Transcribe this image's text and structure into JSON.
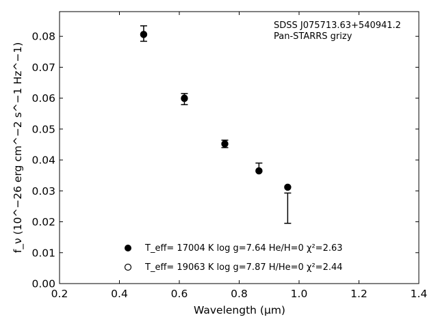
{
  "chart_data": {
    "type": "scatter",
    "annotation": [
      "SDSS J075713.63+540941.2",
      "Pan-STARRS grizy"
    ],
    "xlabel": "Wavelength (μm)",
    "ylabel": "f_ν (10^−26 erg cm^−2 s^−1 Hz^−1)",
    "xlim": [
      0.2,
      1.4
    ],
    "ylim": [
      0.0,
      0.088
    ],
    "xticks": [
      "0.2",
      "0.4",
      "0.6",
      "0.8",
      "1.0",
      "1.2",
      "1.4"
    ],
    "yticks": [
      "0.00",
      "0.01",
      "0.02",
      "0.03",
      "0.04",
      "0.05",
      "0.06",
      "0.07",
      "0.08"
    ],
    "grid": false,
    "legend_position": "lower-center",
    "observed": {
      "x": [
        0.481,
        0.617,
        0.752,
        0.866,
        0.962
      ],
      "y": [
        0.0809,
        0.0597,
        0.0452,
        0.0376,
        0.0244
      ],
      "yerr": [
        0.0025,
        0.0018,
        0.0012,
        0.0014,
        0.0049
      ]
    },
    "series": [
      {
        "label": "T_eff= 17004 K  log g=7.64  He/H=0  χ²=2.63",
        "marker": "filled-circle",
        "x": [
          0.481,
          0.617,
          0.752,
          0.866,
          0.962
        ],
        "y": [
          0.0807,
          0.0601,
          0.0453,
          0.0364,
          0.0312
        ]
      },
      {
        "label": "T_eff= 19063 K  log g=7.87  H/He=0  χ²=2.44",
        "marker": "open-circle",
        "x": [
          0.481,
          0.617,
          0.752,
          0.866,
          0.962
        ],
        "y": [
          0.0806,
          0.0599,
          0.0452,
          0.0365,
          0.0312
        ]
      }
    ]
  }
}
